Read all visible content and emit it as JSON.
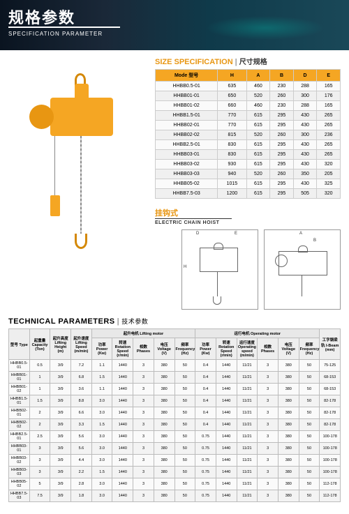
{
  "hero": {
    "title_cn": "规格参数",
    "title_en": "SPECIFICATION PARAMETER"
  },
  "size": {
    "title_en": "SIZE SPECIFICATION",
    "title_cn": "尺寸规格",
    "headers": [
      "Mode 型号",
      "H",
      "A",
      "B",
      "D",
      "E"
    ],
    "rows": [
      [
        "HHBB0.5-01",
        "635",
        "460",
        "230",
        "288",
        "165"
      ],
      [
        "HHBB01-01",
        "650",
        "520",
        "260",
        "300",
        "176"
      ],
      [
        "HHBB01-02",
        "660",
        "460",
        "230",
        "288",
        "165"
      ],
      [
        "HHBB1.5-01",
        "770",
        "615",
        "295",
        "430",
        "265"
      ],
      [
        "HHBB02-01",
        "770",
        "615",
        "295",
        "430",
        "265"
      ],
      [
        "HHBB02-02",
        "815",
        "520",
        "260",
        "300",
        "236"
      ],
      [
        "HHBB2.5-01",
        "830",
        "615",
        "295",
        "430",
        "265"
      ],
      [
        "HHBB03-01",
        "830",
        "615",
        "295",
        "430",
        "265"
      ],
      [
        "HHBB03-02",
        "930",
        "615",
        "295",
        "430",
        "320"
      ],
      [
        "HHBB03-03",
        "940",
        "520",
        "260",
        "350",
        "205"
      ],
      [
        "HHBB05-02",
        "1015",
        "615",
        "295",
        "430",
        "325"
      ],
      [
        "HHBB7.5-03",
        "1200",
        "615",
        "295",
        "505",
        "320"
      ]
    ]
  },
  "hook": {
    "title_cn": "挂钩式",
    "title_en": "ELECTRIC CHAIN HOIST"
  },
  "diag": {
    "labels": {
      "D": "D",
      "E": "E",
      "H": "H",
      "A": "A",
      "B": "B"
    }
  },
  "tech": {
    "title_en": "TECHNICAL PARAMETERS",
    "title_cn": "技术参数",
    "group1": "起升电机 Lifting motor",
    "group2": "运行电机 Operating motor",
    "h": {
      "type": "型号\nType",
      "cap": "起重量\nCapacity\n(Ton)",
      "lh": "起升高度\nLifting Height\n(m)",
      "ls": "起升速度\nLifting Speed\n(m/min)",
      "pw": "功率\nPower\n(Kw)",
      "rs": "转速\nRotation\nSpeed\n(r/min)",
      "ph": "相数\nPhases",
      "vo": "电压\nVoltage\n(V)",
      "fr": "频率\nFrequency\n(Hz)",
      "pw2": "功率\nPower\n(Kw)",
      "rs2": "转速\nRotation\nSpeed\n(r/min)",
      "os": "运行速度\nOperating\nspeed\n(m/min)",
      "ph2": "相数\nPhases",
      "vo2": "电压\nVoltage\n(V)",
      "fr2": "频率\nFrequency\n(Hz)",
      "ib": "工字钢梁轨\nI-Beam\n(mm)"
    },
    "rows": [
      [
        "HHBB0.5-01",
        "0.5",
        "3/9",
        "7.2",
        "1.1",
        "1440",
        "3",
        "380",
        "50",
        "0.4",
        "1440",
        "11/21",
        "3",
        "380",
        "50",
        "75-125"
      ],
      [
        "HHBB01-01",
        "1",
        "3/9",
        "6.8",
        "1.5",
        "1440",
        "3",
        "380",
        "50",
        "0.4",
        "1440",
        "11/21",
        "3",
        "380",
        "50",
        "68-153"
      ],
      [
        "HHBB01-02",
        "1",
        "3/9",
        "3.6",
        "1.1",
        "1440",
        "3",
        "380",
        "50",
        "0.4",
        "1440",
        "11/21",
        "3",
        "380",
        "50",
        "68-153"
      ],
      [
        "HHBB1.5-01",
        "1.5",
        "3/9",
        "8.8",
        "3.0",
        "1440",
        "3",
        "380",
        "50",
        "0.4",
        "1440",
        "11/21",
        "3",
        "380",
        "50",
        "82-178"
      ],
      [
        "HHBB02-01",
        "2",
        "3/9",
        "6.6",
        "3.0",
        "1440",
        "3",
        "380",
        "50",
        "0.4",
        "1440",
        "11/21",
        "3",
        "380",
        "50",
        "82-178"
      ],
      [
        "HHBB02-02",
        "2",
        "3/9",
        "3.3",
        "1.5",
        "1440",
        "3",
        "380",
        "50",
        "0.4",
        "1440",
        "11/21",
        "3",
        "380",
        "50",
        "82-178"
      ],
      [
        "HHBB2.5-01",
        "2.5",
        "3/9",
        "5.6",
        "3.0",
        "1440",
        "3",
        "380",
        "50",
        "0.75",
        "1440",
        "11/21",
        "3",
        "380",
        "50",
        "100-178"
      ],
      [
        "HHBB03-01",
        "3",
        "3/9",
        "5.6",
        "3.0",
        "1440",
        "3",
        "380",
        "50",
        "0.75",
        "1440",
        "11/21",
        "3",
        "380",
        "50",
        "100-178"
      ],
      [
        "HHBB03-02",
        "3",
        "3/9",
        "4.4",
        "3.0",
        "1440",
        "3",
        "380",
        "50",
        "0.75",
        "1440",
        "11/21",
        "3",
        "380",
        "50",
        "100-178"
      ],
      [
        "HHBB03-03",
        "3",
        "3/9",
        "2.2",
        "1.5",
        "1440",
        "3",
        "380",
        "50",
        "0.75",
        "1440",
        "11/21",
        "3",
        "380",
        "50",
        "100-178"
      ],
      [
        "HHBB05-02",
        "5",
        "3/9",
        "2.8",
        "3.0",
        "1440",
        "3",
        "380",
        "50",
        "0.75",
        "1440",
        "11/21",
        "3",
        "380",
        "50",
        "112-178"
      ],
      [
        "HHBB7.5-03",
        "7.5",
        "3/9",
        "1.8",
        "3.0",
        "1440",
        "3",
        "380",
        "50",
        "0.75",
        "1440",
        "11/21",
        "3",
        "380",
        "50",
        "112-178"
      ]
    ]
  }
}
